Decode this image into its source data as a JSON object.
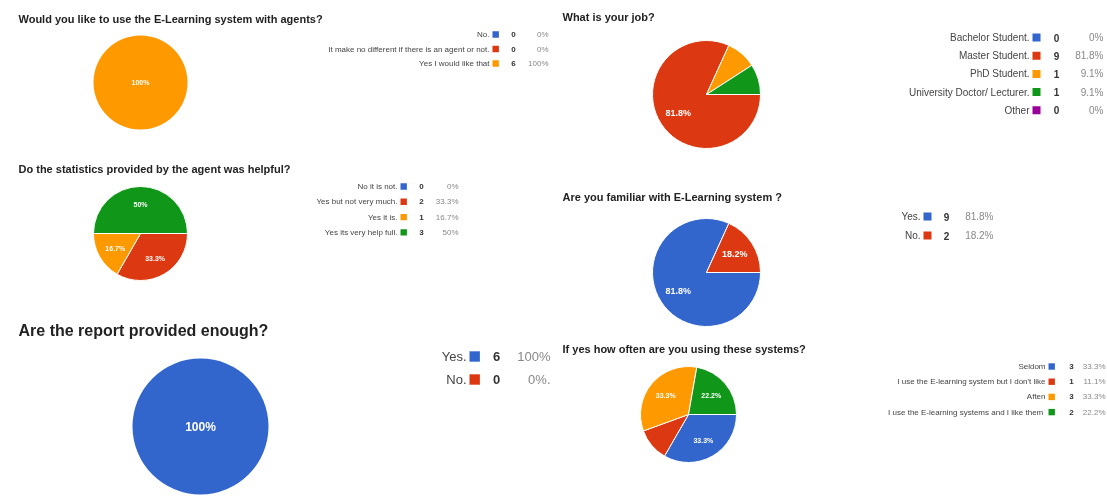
{
  "chart_data": [
    {
      "type": "pie",
      "title": "Would you like to use the E-Learning system with agents?",
      "categories": [
        "No.",
        "It make no different if there is an agent or not.",
        "Yes I would like that"
      ],
      "values": [
        0,
        0,
        100
      ],
      "colors": [
        "#3366cc",
        "#dc3912",
        "#ff9900"
      ],
      "value_labels": [
        "0%",
        "0%",
        "100%"
      ],
      "annotations": [
        "0",
        "0",
        "6"
      ],
      "legend": "right"
    },
    {
      "type": "pie",
      "title": "What is your job?",
      "categories": [
        "Bachelor Student.",
        "Master Student.",
        "PhD Student.",
        "University Doctor/ Lecturer.",
        "Other"
      ],
      "values": [
        0,
        81.8,
        9.1,
        9.1,
        0
      ],
      "colors": [
        "#3366cc",
        "#dc3912",
        "#ff9900",
        "#109618",
        "#990099"
      ],
      "value_labels": [
        "0%",
        "81.8%",
        "9.1%",
        "9.1%",
        "0%"
      ],
      "annotations": [
        "0",
        "9",
        "1",
        "1",
        "0"
      ],
      "legend": "right"
    },
    {
      "type": "pie",
      "title": "Do the statistics provided by the agent was helpful?",
      "categories": [
        "No it is not.",
        "Yes but not very much.",
        "Yes it is.",
        "Yes its very help full."
      ],
      "values": [
        0,
        33.3,
        16.7,
        50
      ],
      "colors": [
        "#3366cc",
        "#dc3912",
        "#ff9900",
        "#109618"
      ],
      "value_labels": [
        "0%",
        "33.3%",
        "16.7%",
        "50%"
      ],
      "annotations": [
        "0",
        "2",
        "1",
        "3"
      ],
      "legend": "right"
    },
    {
      "type": "pie",
      "title": "Are you familiar with E-Learning system ?",
      "categories": [
        "Yes.",
        "No."
      ],
      "values": [
        81.8,
        18.2
      ],
      "colors": [
        "#3366cc",
        "#dc3912"
      ],
      "value_labels": [
        "81.8%",
        "18.2%"
      ],
      "annotations": [
        "9",
        "2"
      ],
      "legend": "right"
    },
    {
      "type": "pie",
      "title": "Are the report provided enough?",
      "categories": [
        "Yes.",
        "No."
      ],
      "values": [
        100,
        0
      ],
      "colors": [
        "#3366cc",
        "#dc3912"
      ],
      "value_labels": [
        "100%",
        "0%."
      ],
      "annotations": [
        "6",
        "0"
      ],
      "legend": "right"
    },
    {
      "type": "pie",
      "title": "If yes how often are you using these systems?",
      "categories": [
        "Seldom",
        "I use the E-learning system but I don't like",
        "Aften",
        "I use the E-learning  systems and I like them"
      ],
      "values": [
        33.3,
        11.1,
        33.3,
        22.2
      ],
      "colors": [
        "#3366cc",
        "#dc3912",
        "#ff9900",
        "#109618"
      ],
      "value_labels": [
        "33.3%",
        "11.1%",
        "33.3%",
        "22.2%"
      ],
      "annotations": [
        "3",
        "1",
        "3",
        "2"
      ],
      "legend": "right"
    }
  ]
}
